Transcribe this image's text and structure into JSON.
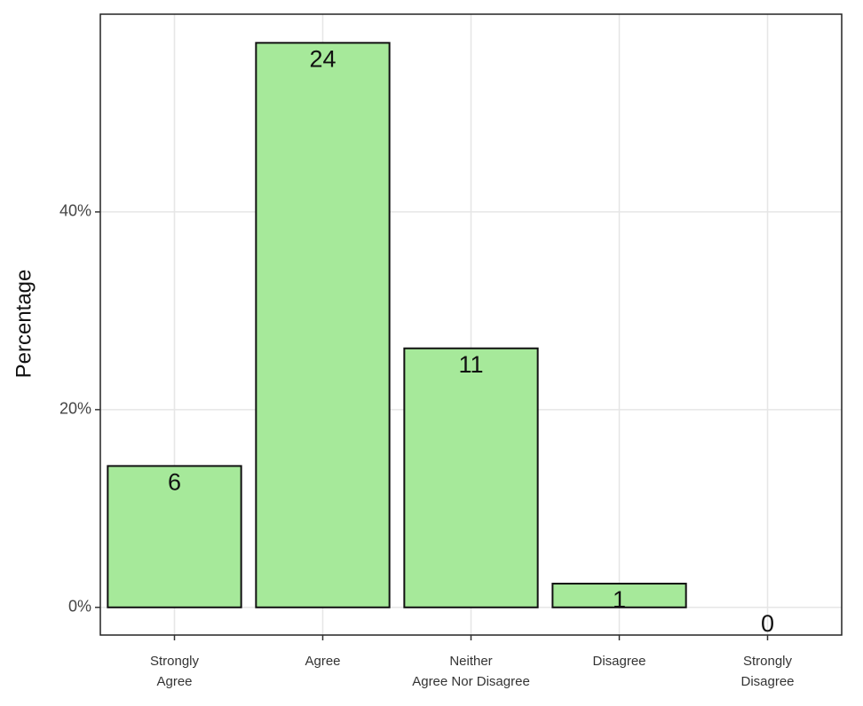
{
  "chart_data": {
    "type": "bar",
    "y_label": "Percentage",
    "categories": [
      [
        "Strongly",
        "Agree"
      ],
      [
        "Agree"
      ],
      [
        "Neither",
        "Agree Nor Disagree"
      ],
      [
        "Disagree"
      ],
      [
        "Strongly",
        "Disagree"
      ]
    ],
    "values": [
      14.3,
      57.1,
      26.2,
      2.4,
      0
    ],
    "counts": [
      6,
      24,
      11,
      1,
      0
    ],
    "color": "#a6e99a",
    "ylim": [
      -2.8,
      60
    ],
    "yticks": [
      {
        "value": 0,
        "label": "0%"
      },
      {
        "value": 20,
        "label": "20%"
      },
      {
        "value": 40,
        "label": "40%"
      }
    ],
    "grid": true
  }
}
